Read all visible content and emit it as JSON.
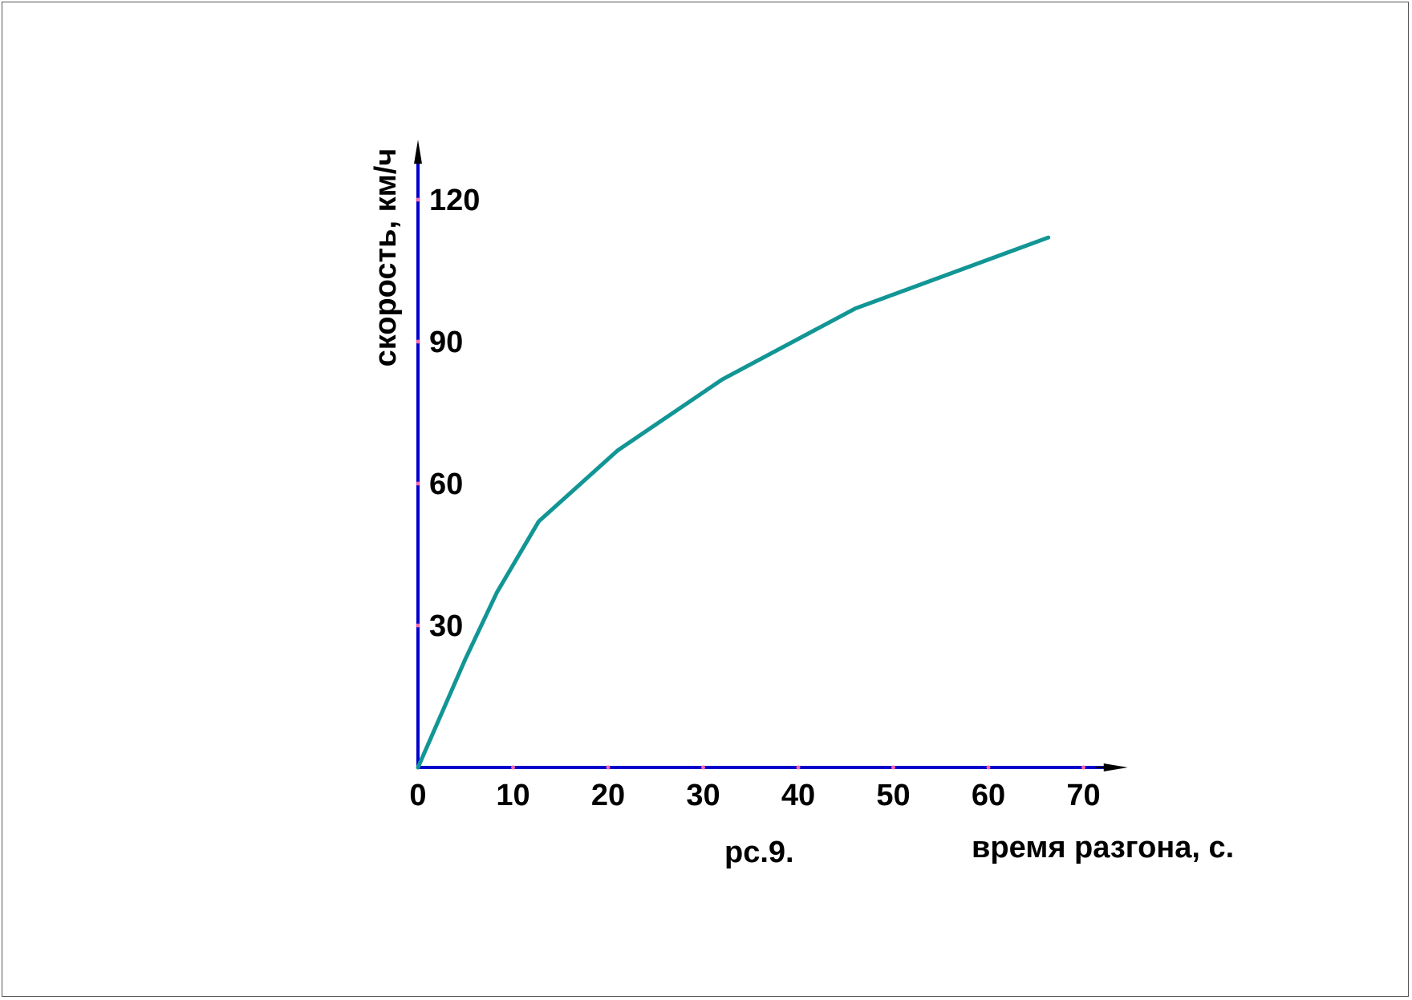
{
  "chart_data": {
    "type": "line",
    "title": "",
    "caption": "рс.9.",
    "xlabel": "время разгона, с.",
    "ylabel": "скорость, км/ч",
    "xlim": [
      0,
      75
    ],
    "ylim": [
      0,
      132
    ],
    "xticks": [
      0,
      10,
      20,
      30,
      40,
      50,
      60,
      70
    ],
    "yticks": [
      30,
      60,
      90,
      120
    ],
    "grid": false,
    "series": [
      {
        "color": "#129595",
        "x": [
          0,
          5,
          8.3,
          12.7,
          21,
          32,
          46,
          66.3
        ],
        "y": [
          0,
          23,
          37,
          52,
          67,
          82,
          97,
          112
        ]
      }
    ],
    "colors": {
      "axis": "#0000cc",
      "arrow": "#000000",
      "tick_mark": "#ff66aa"
    }
  }
}
